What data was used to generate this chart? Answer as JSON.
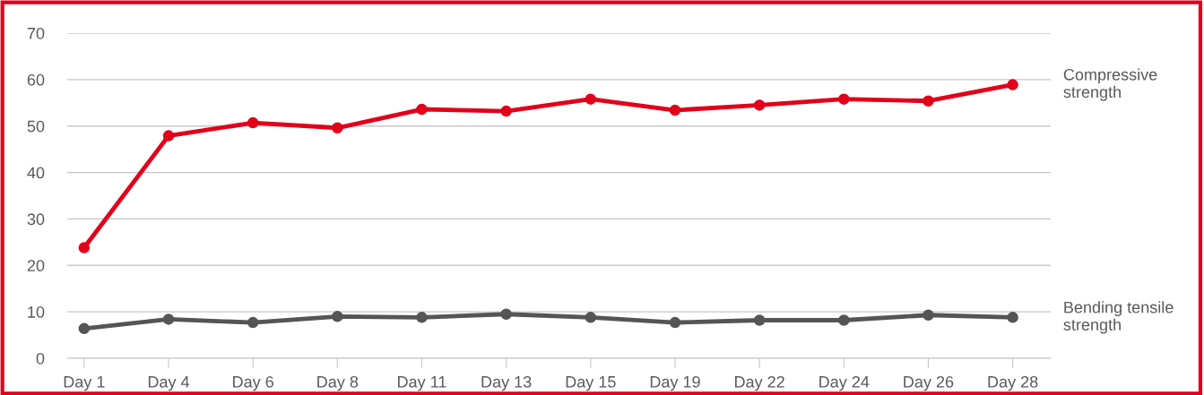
{
  "chart_data": {
    "type": "line",
    "categories": [
      "Day 1",
      "Day 4",
      "Day 6",
      "Day 8",
      "Day 11",
      "Day 13",
      "Day 15",
      "Day 19",
      "Day 22",
      "Day 24",
      "Day 26",
      "Day 28"
    ],
    "series": [
      {
        "name": "Compressive strength",
        "color": "#e2001a",
        "values": [
          23.8,
          47.9,
          50.7,
          49.6,
          53.6,
          53.2,
          55.8,
          53.4,
          54.5,
          55.8,
          55.4,
          58.9
        ]
      },
      {
        "name": "Bending tensile strength",
        "color": "#555555",
        "values": [
          6.4,
          8.4,
          7.7,
          9.0,
          8.8,
          9.5,
          8.8,
          7.7,
          8.2,
          8.2,
          9.3,
          8.8
        ]
      }
    ],
    "ylim": [
      0,
      70
    ],
    "yticks": [
      0,
      10,
      20,
      30,
      40,
      50,
      60,
      70
    ],
    "grid": "y",
    "marker": "circle",
    "line_style": "solid",
    "legend": "right"
  }
}
